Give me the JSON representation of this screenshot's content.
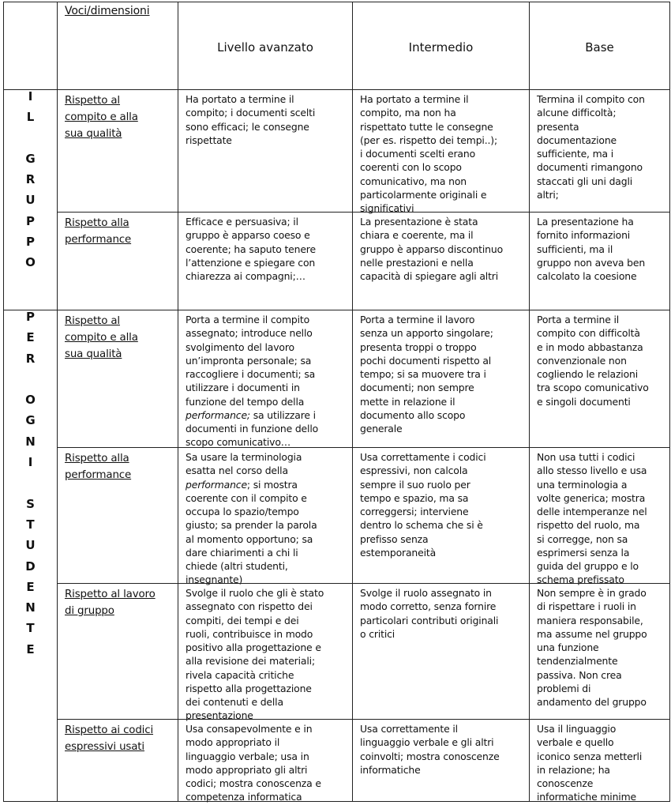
{
  "header": {
    "dimension_label": "Voci/dimensioni",
    "levels": [
      "Livello avanzato",
      "Intermedio",
      "Base"
    ]
  },
  "groups": [
    {
      "letters": [
        "I",
        "L",
        "",
        "G",
        "R",
        "U",
        "P",
        "P",
        "O"
      ]
    },
    {
      "letters": [
        "P",
        "E",
        "R",
        "",
        "O",
        "G",
        "N",
        "I",
        "",
        "S",
        "T",
        "U",
        "D",
        "E",
        "N",
        "T",
        "E"
      ]
    }
  ],
  "rows": [
    {
      "label": [
        "Rispetto al",
        "compito e alla",
        "sua qualità"
      ],
      "cells": [
        [
          [
            "Ha  portato a termine il"
          ],
          [
            "compito; i documenti scelti"
          ],
          [
            "sono efficaci; le consegne"
          ],
          [
            "rispettate"
          ]
        ],
        [
          [
            "Ha portato a termine il"
          ],
          [
            "compito, ma non ha"
          ],
          [
            "rispettato tutte le consegne"
          ],
          [
            "(per es. rispetto dei tempi..);"
          ],
          [
            "i documenti scelti erano"
          ],
          [
            "coerenti con lo scopo"
          ],
          [
            "comunicativo, ma non"
          ],
          [
            "particolarmente originali e"
          ],
          [
            "significativi"
          ]
        ],
        [
          [
            "Termina il compito con"
          ],
          [
            "alcune difficoltà;"
          ],
          [
            "presenta"
          ],
          [
            "documentazione"
          ],
          [
            "sufficiente, ma i"
          ],
          [
            "documenti rimangono"
          ],
          [
            "staccati gli uni dagli"
          ],
          [
            "altri;"
          ]
        ]
      ]
    },
    {
      "label": [
        "Rispetto alla",
        "performance"
      ],
      "cells": [
        [
          [
            "Efficace e persuasiva; il"
          ],
          [
            "gruppo è apparso coeso e"
          ],
          [
            "coerente; ha saputo tenere"
          ],
          [
            "l’attenzione e spiegare con"
          ],
          [
            "chiarezza ai compagni;…"
          ]
        ],
        [
          [
            "La presentazione è stata"
          ],
          [
            "chiara e coerente, ma il"
          ],
          [
            "gruppo è apparso discontinuo"
          ],
          [
            "nelle prestazioni e nella"
          ],
          [
            "capacità di spiegare agli altri"
          ]
        ],
        [
          [
            "La presentazione ha"
          ],
          [
            "fornito informazioni"
          ],
          [
            "sufficienti, ma il"
          ],
          [
            "gruppo non aveva ben"
          ],
          [
            "calcolato la coesione"
          ]
        ]
      ]
    },
    {
      "label": [
        "Rispetto al",
        "compito e alla",
        "sua qualità"
      ],
      "cells": [
        [
          [
            "Porta a termine il compito"
          ],
          [
            "assegnato; introduce nello"
          ],
          [
            "svolgimento del lavoro"
          ],
          [
            "un’impronta personale; sa"
          ],
          [
            "raccogliere i documenti; sa"
          ],
          [
            "utilizzare i  documenti in"
          ],
          [
            "funzione del tempo della"
          ],
          [
            {
              "t": "performance;",
              "i": true
            },
            " sa utilizzare i"
          ],
          [
            "documenti in funzione dello"
          ],
          [
            "scopo comunicativo…"
          ]
        ],
        [
          [
            "Porta a termine il lavoro"
          ],
          [
            "senza un apporto singolare;"
          ],
          [
            "presenta troppi o troppo"
          ],
          [
            "pochi documenti rispetto al"
          ],
          [
            "tempo; si sa muovere tra i"
          ],
          [
            "documenti; non sempre"
          ],
          [
            "mette in relazione il"
          ],
          [
            "documento allo scopo"
          ],
          [
            "generale"
          ]
        ],
        [
          [
            "Porta a termine il"
          ],
          [
            "compito con difficoltà"
          ],
          [
            "e in modo abbastanza"
          ],
          [
            "convenzionale non"
          ],
          [
            "cogliendo le relazioni"
          ],
          [
            "tra scopo comunicativo"
          ],
          [
            "e singoli documenti"
          ]
        ]
      ]
    },
    {
      "label": [
        "Rispetto alla",
        "performance"
      ],
      "cells": [
        [
          [
            "Sa usare la terminologia"
          ],
          [
            "esatta nel corso della"
          ],
          [
            {
              "t": "performance",
              "i": true
            },
            "; si mostra"
          ],
          [
            "coerente con il compito e"
          ],
          [
            "occupa lo spazio/tempo"
          ],
          [
            "giusto; sa prender la parola"
          ],
          [
            "al momento opportuno; sa"
          ],
          [
            "dare chiarimenti a chi li"
          ],
          [
            "chiede (altri studenti,"
          ],
          [
            "insegnante)"
          ]
        ],
        [
          [
            "Usa correttamente i codici"
          ],
          [
            "espressivi, non calcola"
          ],
          [
            "sempre il suo ruolo per"
          ],
          [
            "tempo e spazio, ma sa"
          ],
          [
            "correggersi; interviene"
          ],
          [
            "dentro lo schema che si è"
          ],
          [
            "prefisso senza"
          ],
          [
            "estemporaneità"
          ]
        ],
        [
          [
            "Non usa tutti i codici"
          ],
          [
            "allo stesso livello e usa"
          ],
          [
            "una terminologia a"
          ],
          [
            "volte generica; mostra"
          ],
          [
            "delle intemperanze nel"
          ],
          [
            "rispetto del ruolo, ma"
          ],
          [
            "si corregge, non sa"
          ],
          [
            "esprimersi senza la"
          ],
          [
            "guida del gruppo e lo"
          ],
          [
            "schema prefissato"
          ]
        ]
      ]
    },
    {
      "label": [
        "Rispetto al lavoro",
        "di gruppo"
      ],
      "cells": [
        [
          [
            "Svolge il ruolo che gli è stato"
          ],
          [
            "assegnato con rispetto dei"
          ],
          [
            "compiti, dei tempi e dei"
          ],
          [
            "ruoli, contribuisce in modo"
          ],
          [
            "positivo alla progettazione e"
          ],
          [
            "alla revisione dei materiali;"
          ],
          [
            "rivela capacità critiche"
          ],
          [
            "rispetto alla progettazione"
          ],
          [
            "dei contenuti e della"
          ],
          [
            "presentazione"
          ]
        ],
        [
          [
            "Svolge il ruolo assegnato in"
          ],
          [
            "modo corretto, senza fornire"
          ],
          [
            "particolari contributi originali"
          ],
          [
            "o critici"
          ]
        ],
        [
          [
            "Non sempre è in grado"
          ],
          [
            "di rispettare i ruoli in"
          ],
          [
            "maniera responsabile,"
          ],
          [
            "ma assume nel gruppo"
          ],
          [
            "una funzione"
          ],
          [
            "tendenzialmente"
          ],
          [
            "passiva. Non crea"
          ],
          [
            "problemi di"
          ],
          [
            "andamento del gruppo"
          ]
        ]
      ]
    },
    {
      "label": [
        "Rispetto ai codici",
        "espressivi usati"
      ],
      "cells": [
        [
          [
            "Usa consapevolmente e in"
          ],
          [
            "modo appropriato il"
          ],
          [
            "linguaggio verbale; usa in"
          ],
          [
            "modo appropriato gli altri"
          ],
          [
            "codici; mostra conoscenza e"
          ],
          [
            "competenza informatica"
          ]
        ],
        [
          [
            "Usa correttamente il"
          ],
          [
            "linguaggio verbale e gli altri"
          ],
          [
            "coinvolti; mostra conoscenze"
          ],
          [
            "informatiche"
          ]
        ],
        [
          [
            "Usa il linguaggio"
          ],
          [
            "verbale e quello"
          ],
          [
            "iconico senza metterli"
          ],
          [
            "in relazione; ha"
          ],
          [
            "conoscenze"
          ],
          [
            "informatiche minime"
          ]
        ]
      ]
    }
  ]
}
